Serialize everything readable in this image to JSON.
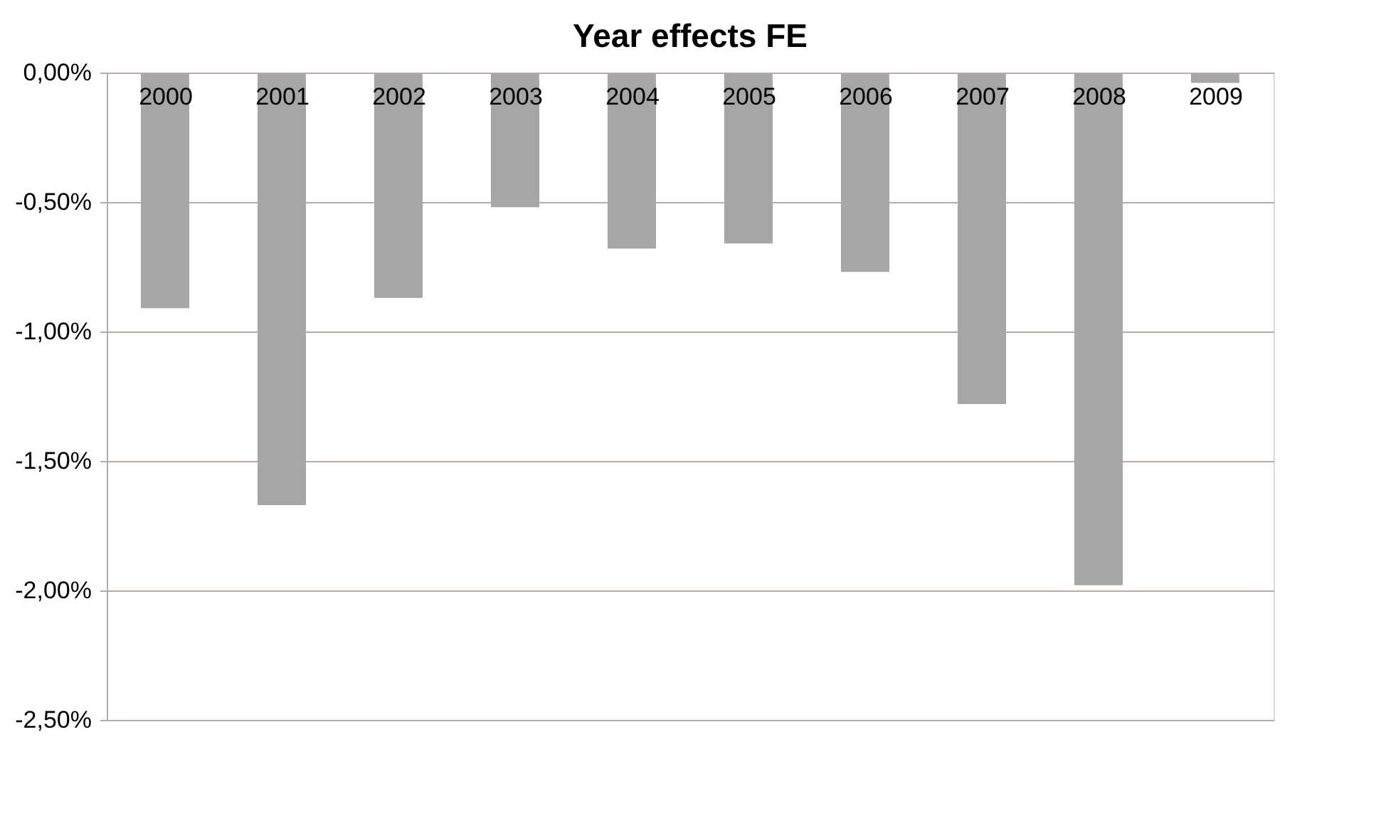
{
  "chart_data": {
    "type": "bar",
    "title": "Year effects FE",
    "categories": [
      "2000",
      "2001",
      "2002",
      "2003",
      "2004",
      "2005",
      "2006",
      "2007",
      "2008",
      "2009"
    ],
    "values": [
      -0.91,
      -1.67,
      -0.87,
      -0.52,
      -0.68,
      -0.66,
      -0.77,
      -1.28,
      -1.98,
      -0.04
    ],
    "color": "#a6a6a6",
    "ylim": [
      -2.5,
      0
    ],
    "yticks": [
      {
        "value": 0,
        "label": "0,00%"
      },
      {
        "value": -0.5,
        "label": "-0,50%"
      },
      {
        "value": -1.0,
        "label": "-1,00%"
      },
      {
        "value": -1.5,
        "label": "-1,50%"
      },
      {
        "value": -2.0,
        "label": "-2,00%"
      },
      {
        "value": -2.5,
        "label": "-2,50%"
      }
    ],
    "grid": "y"
  }
}
